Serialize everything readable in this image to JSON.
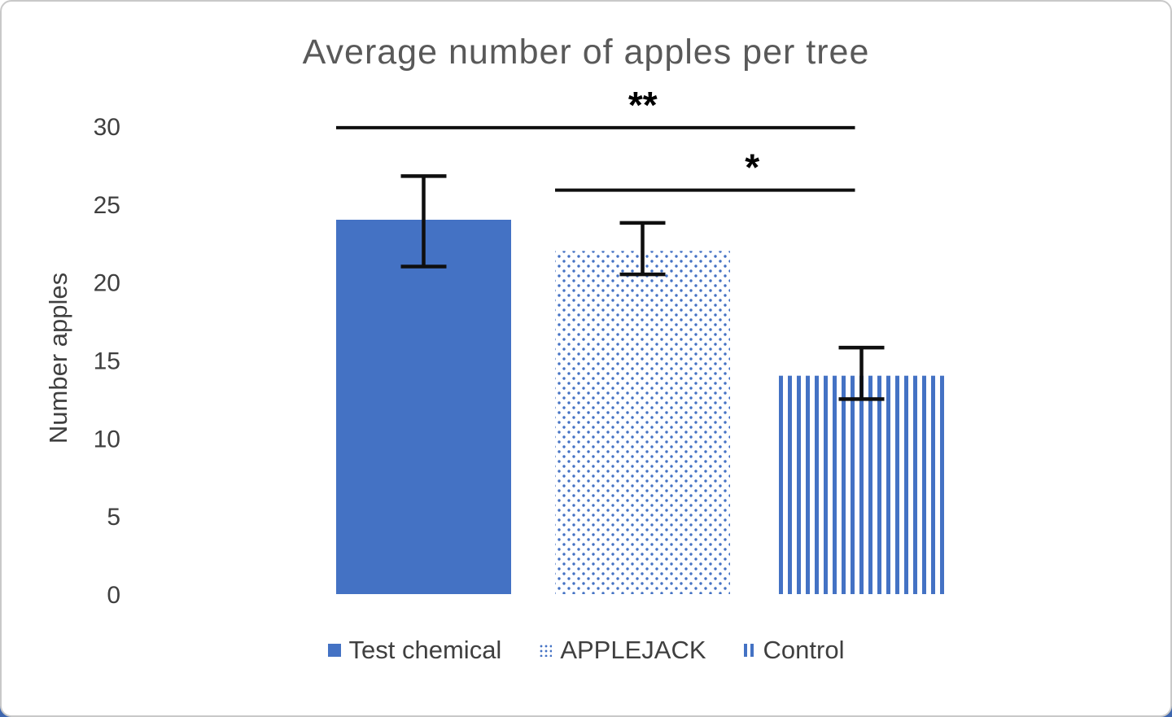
{
  "chart_data": {
    "type": "bar",
    "title": "Average number of apples per tree",
    "xlabel": "",
    "ylabel": "Number apples",
    "ylim": [
      0,
      30
    ],
    "yticks": [
      0,
      5,
      10,
      15,
      20,
      25,
      30
    ],
    "grid": false,
    "legend_position": "bottom",
    "categories": [
      "Test chemical",
      "APPLEJACK",
      "Control"
    ],
    "values": [
      24,
      22,
      14
    ],
    "error_bars": [
      {
        "plus": 2.8,
        "minus": 3.0
      },
      {
        "plus": 1.8,
        "minus": 1.5
      },
      {
        "plus": 1.8,
        "minus": 1.5
      }
    ],
    "bar_styles": [
      {
        "fill": "solid",
        "color": "#4472C4"
      },
      {
        "fill": "dots",
        "color": "#4472C4"
      },
      {
        "fill": "vertical-stripes",
        "color": "#4472C4"
      }
    ],
    "significance": [
      {
        "from": 0,
        "to": 2,
        "y": 29.9,
        "label": "**"
      },
      {
        "from": 1,
        "to": 2,
        "y": 25.9,
        "label": "*"
      }
    ]
  },
  "colors": {
    "accent": "#4472C4",
    "title_text": "#595959",
    "axis_text": "#3f3f3f",
    "annotation": "#000000",
    "card_border": "#c9c9c9",
    "corner_accent": "#3e66ae"
  }
}
